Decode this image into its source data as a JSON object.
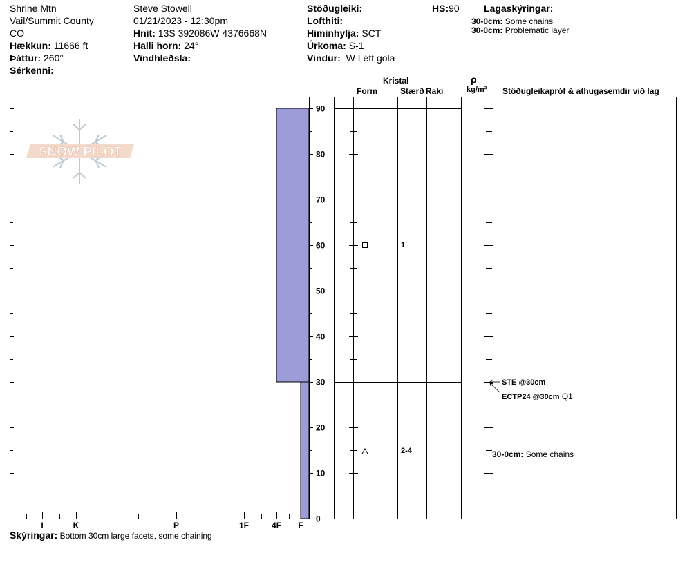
{
  "header": {
    "col1": {
      "location": "Shrine Mtn",
      "area": "Vail/Summit County",
      "state": "CO",
      "elevation_label": "Hækkun:",
      "elevation_value": "11666 ft",
      "aspect_label": "Þáttur:",
      "aspect_value": "260°",
      "features_label": "Sérkenni:"
    },
    "col2": {
      "observer": "Steve Stowell",
      "datetime": "01/21/2023 - 12:30pm",
      "coords_label": "Hnit:",
      "coords_value": "13S 392086W 4376668N",
      "slope_label": "Halli horn:",
      "slope_value": "24°",
      "wind_loading_label": "Vindhleðsla:"
    },
    "col3": {
      "stability_label": "Stöðugleiki:",
      "air_temp_label": "Lofthiti:",
      "sky_label": "Himinhylja:",
      "sky_value": "SCT",
      "precip_label": "Úrkoma:",
      "precip_value": "S-1",
      "wind_label": "Vindur:",
      "wind_value": "W Létt gola"
    },
    "hs_label": "HS:",
    "hs_value": "90",
    "layer_notes": {
      "title": "Lagaskýringar:",
      "items": [
        {
          "range": "30-0cm:",
          "text": "Some chains"
        },
        {
          "range": "30-0cm:",
          "text": "Problematic layer"
        }
      ]
    }
  },
  "logo": {
    "text": "SNOW PILOT"
  },
  "hardness_axis": {
    "labels": [
      "I",
      "K",
      "P",
      "1F",
      "4F",
      "F"
    ]
  },
  "depth_axis": {
    "labels": [
      "90",
      "80",
      "70",
      "60",
      "50",
      "40",
      "30",
      "20",
      "10",
      "0"
    ]
  },
  "table_headers": {
    "crystal": "Kristal",
    "form": "Form",
    "size": "Stærð",
    "moisture": "Raki",
    "density_symbol": "ρ",
    "density_unit": "kg/m³",
    "tests": "Stöðugleikapróf & athugasemdir við lag"
  },
  "layers": [
    {
      "size": "1",
      "form_icon": "square-faceted-icon"
    },
    {
      "size": "2-4",
      "form_icon": "depth-hoar-icon"
    }
  ],
  "tests": [
    {
      "label": "STE @30cm",
      "extra": ""
    },
    {
      "label": "ECTP24 @30cm",
      "extra": "Q1"
    }
  ],
  "layer_comment": {
    "range": "30-0cm:",
    "text": "Some chains"
  },
  "footer": {
    "label": "Skýringar:",
    "text": "Bottom 30cm large facets, some chaining"
  },
  "colors": {
    "hardness_fill": "#9c9cd8",
    "logo_fill": "#f3d8c8",
    "logo_stroke": "#bfc8d8"
  },
  "chart_data": {
    "type": "bar",
    "title": "",
    "xlabel": "",
    "ylabel": "",
    "depth_range_cm": [
      0,
      90
    ],
    "hardness_scale": [
      "I",
      "K",
      "P",
      "1F",
      "4F",
      "F"
    ],
    "layers": [
      {
        "top_cm": 90,
        "bottom_cm": 30,
        "hardness": "4F"
      },
      {
        "top_cm": 30,
        "bottom_cm": 0,
        "hardness": "F"
      }
    ]
  }
}
